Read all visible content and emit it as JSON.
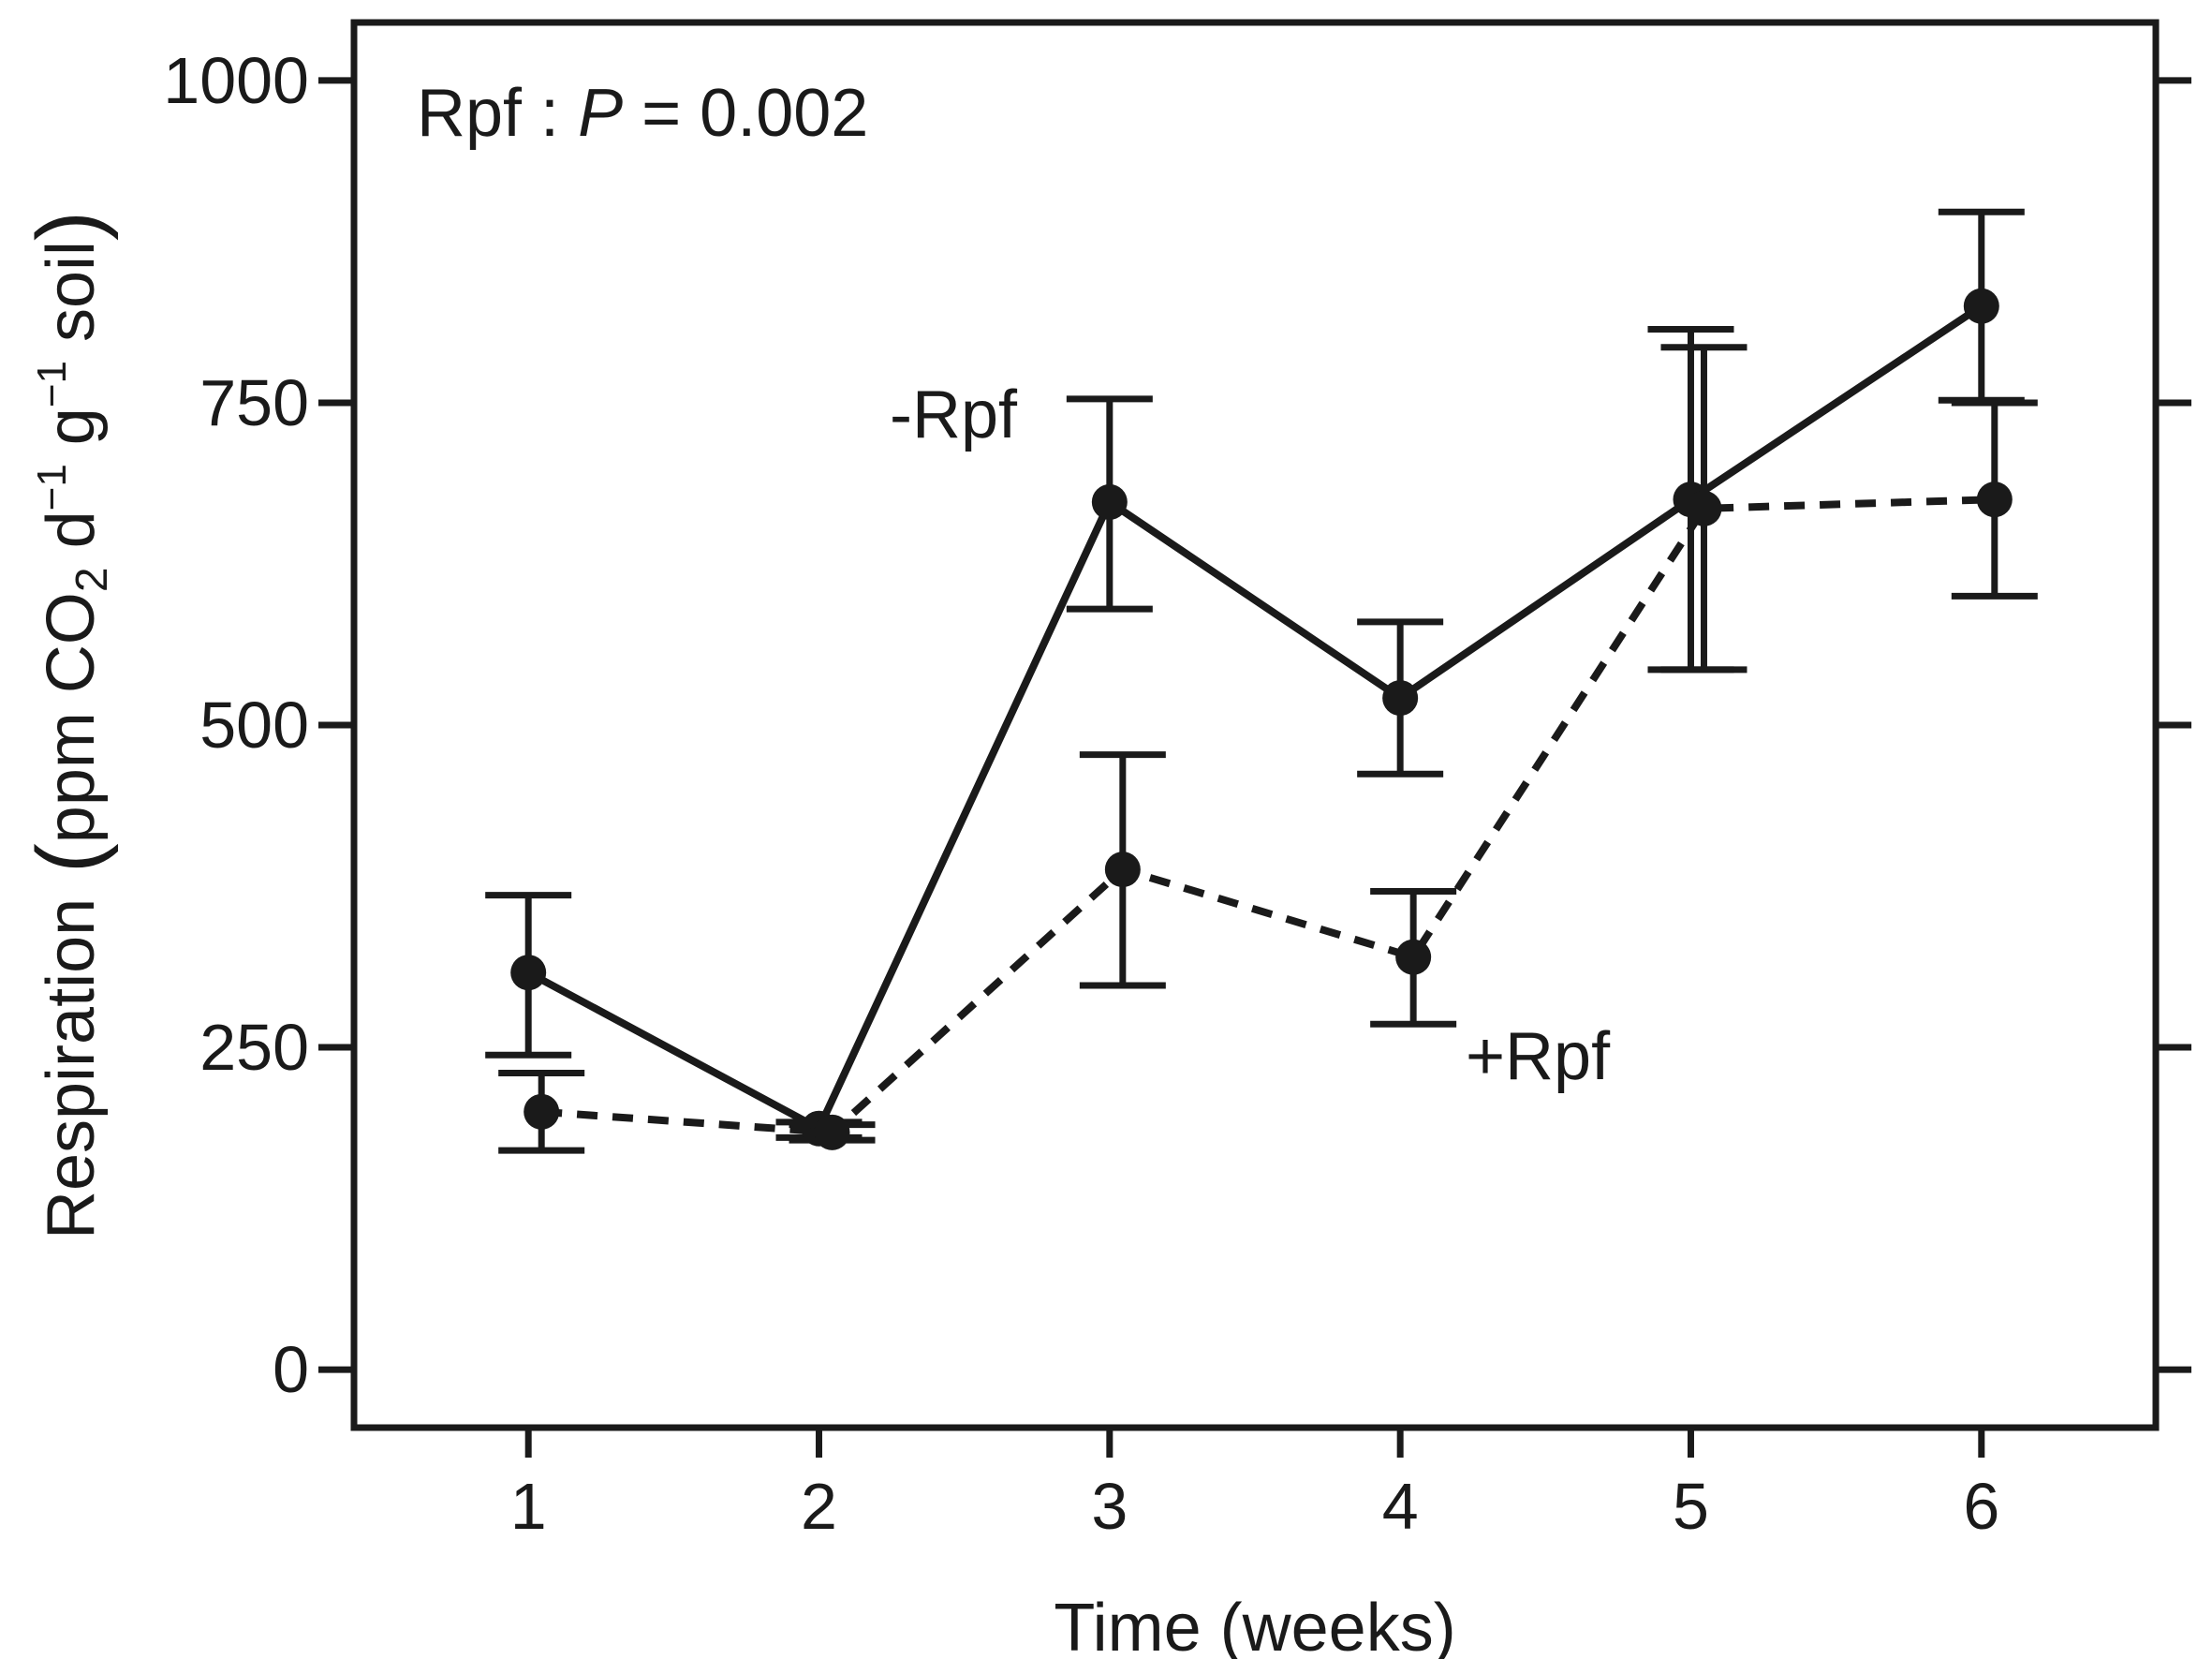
{
  "chart_data": {
    "type": "line",
    "title": "",
    "xlabel": "Time (weeks)",
    "ylabel": {
      "main": "Respiration",
      "unit_prefix": "ppm CO",
      "sub2": "2",
      "d": " d",
      "exp1": "−1",
      "g": " g",
      "exp2": "−1",
      "soil": " soil"
    },
    "annotation": {
      "prefix": "Rpf : ",
      "p": "P",
      "suffix": " = 0.002"
    },
    "x": [
      1,
      2,
      3,
      4,
      5,
      6
    ],
    "xticks": [
      "1",
      "2",
      "3",
      "4",
      "5",
      "6"
    ],
    "xlim": [
      0.4,
      6.6
    ],
    "ylim": [
      -45,
      1045
    ],
    "yticks": [
      "0",
      "250",
      "500",
      "750",
      "1000"
    ],
    "grid": false,
    "series": [
      {
        "name": "-Rpf",
        "line_style": "solid",
        "values": [
          308,
          187,
          673,
          521,
          675,
          825
        ],
        "error_low": [
          244,
          180,
          590,
          462,
          543,
          752
        ],
        "error_high": [
          368,
          192,
          753,
          580,
          807,
          898
        ]
      },
      {
        "name": "+Rpf",
        "line_style": "dashed",
        "values": [
          200,
          184,
          388,
          320,
          668,
          675
        ],
        "error_low": [
          170,
          178,
          298,
          268,
          543,
          600
        ],
        "error_high": [
          230,
          190,
          477,
          371,
          793,
          750
        ]
      }
    ],
    "colors": {
      "ink": "#1a1a1a",
      "background": "#ffffff"
    }
  }
}
